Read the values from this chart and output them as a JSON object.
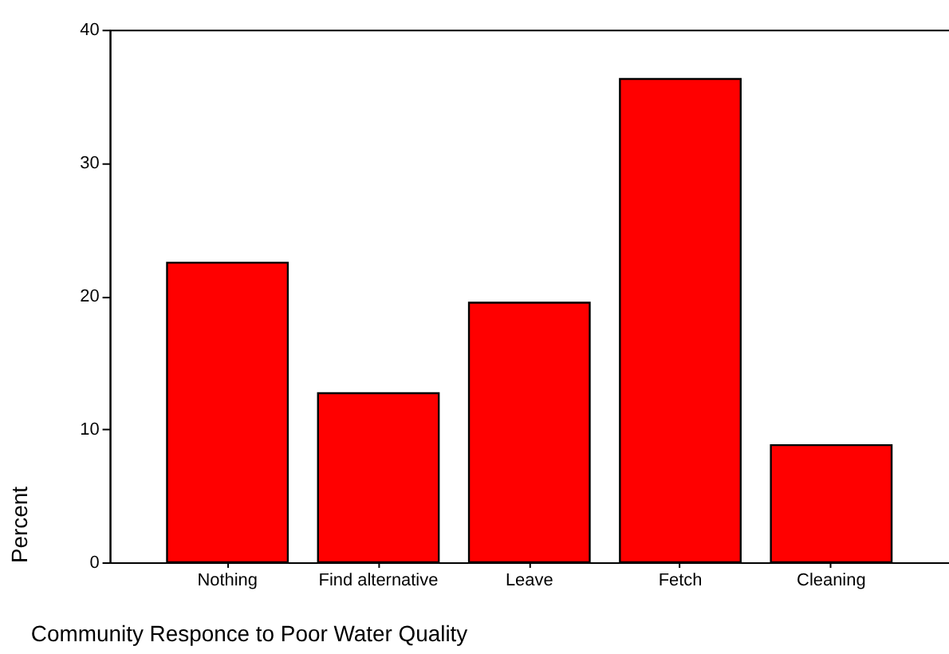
{
  "chart_data": {
    "type": "bar",
    "xlabel": "Community Responce to Poor Water Quality",
    "ylabel": "Percent",
    "categories": [
      "Nothing",
      "Find alternative",
      "Leave",
      "Fetch",
      "Cleaning"
    ],
    "values": [
      22.5,
      12.7,
      19.5,
      36.3,
      8.8
    ],
    "color": "#ff0000",
    "ylim": [
      0,
      40
    ],
    "yticks": [
      0,
      10,
      20,
      30,
      40
    ],
    "grid": false
  }
}
